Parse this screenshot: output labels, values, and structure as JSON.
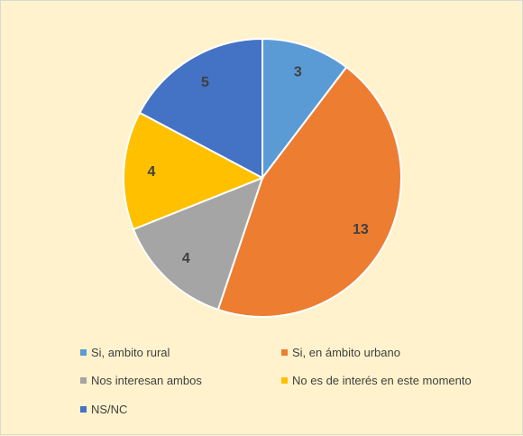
{
  "chart_data": {
    "type": "pie",
    "title": "",
    "categories": [
      "Si, ambito rural",
      "Si, en ámbito urbano",
      "Nos interesan ambos",
      "No es de interés en este momento",
      "NS/NC"
    ],
    "values": [
      3,
      13,
      4,
      4,
      5
    ],
    "colors": [
      "#5B9BD5",
      "#ED7D31",
      "#A5A5A5",
      "#FFC000",
      "#4472C4"
    ],
    "start_angle_deg": 0,
    "direction": "clockwise",
    "data_labels": true,
    "legend_position": "bottom"
  }
}
